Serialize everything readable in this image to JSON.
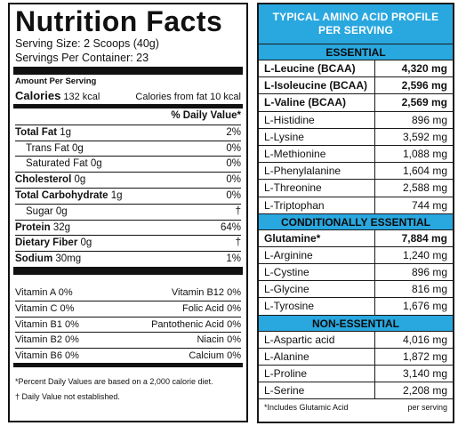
{
  "nutrition": {
    "title": "Nutrition Facts",
    "serving_size": "Serving Size: 2 Scoops (40g)",
    "servings_per_container": "Servings Per Container: 23",
    "amount_per_serving": "Amount Per Serving",
    "calories": {
      "label": "Calories",
      "value": "132 kcal",
      "from_fat": "Calories from fat 10 kcal"
    },
    "daily_value_header": "% Daily Value*",
    "nutrients": [
      {
        "label": "Total Fat",
        "amount": "1g",
        "dv": "2%",
        "bold": true,
        "indent": false
      },
      {
        "label": "Trans Fat",
        "amount": "0g",
        "dv": "0%",
        "bold": false,
        "indent": true
      },
      {
        "label": "Saturated Fat",
        "amount": "0g",
        "dv": "0%",
        "bold": false,
        "indent": true
      },
      {
        "label": "Cholesterol",
        "amount": "0g",
        "dv": "0%",
        "bold": true,
        "indent": false
      },
      {
        "label": "Total Carbohydrate",
        "amount": "1g",
        "dv": "0%",
        "bold": true,
        "indent": false
      },
      {
        "label": "Sugar",
        "amount": "0g",
        "dv": "†",
        "bold": false,
        "indent": true
      },
      {
        "label": "Protein",
        "amount": "32g",
        "dv": "64%",
        "bold": true,
        "indent": false
      },
      {
        "label": "Dietary Fiber",
        "amount": "0g",
        "dv": "†",
        "bold": true,
        "indent": false
      },
      {
        "label": "Sodium",
        "amount": "30mg",
        "dv": "1%",
        "bold": true,
        "indent": false
      }
    ],
    "vitamins": [
      {
        "left": "Vitamin A 0%",
        "right": "Vitamin B12 0%"
      },
      {
        "left": "Vitamin C 0%",
        "right": "Folic Acid 0%"
      },
      {
        "left": "Vitamin B1 0%",
        "right": "Pantothenic Acid 0%"
      },
      {
        "left": "Vitamin B2 0%",
        "right": "Niacin 0%"
      },
      {
        "left": "Vitamin B6 0%",
        "right": "Calcium 0%"
      }
    ],
    "footnote_1": "*Percent Daily Values are based on a 2,000 calorie diet.",
    "footnote_2": "† Daily Value not established."
  },
  "amino": {
    "title_line1": "TYPICAL AMINO ACID PROFILE",
    "title_line2": "PER SERVING",
    "header_color": "#29a7df",
    "sections": [
      {
        "title": "ESSENTIAL",
        "rows": [
          {
            "name": "L-Leucine (BCAA)",
            "amount": "4,320 mg",
            "bold": true
          },
          {
            "name": "L-Isoleucine (BCAA)",
            "amount": "2,596 mg",
            "bold": true
          },
          {
            "name": "L-Valine (BCAA)",
            "amount": "2,569 mg",
            "bold": true
          },
          {
            "name": "L-Histidine",
            "amount": "896 mg",
            "bold": false
          },
          {
            "name": "L-Lysine",
            "amount": "3,592 mg",
            "bold": false
          },
          {
            "name": "L-Methionine",
            "amount": "1,088 mg",
            "bold": false
          },
          {
            "name": "L-Phenylalanine",
            "amount": "1,604 mg",
            "bold": false
          },
          {
            "name": "L-Threonine",
            "amount": "2,588 mg",
            "bold": false
          },
          {
            "name": "L-Triptophan",
            "amount": "744 mg",
            "bold": false
          }
        ]
      },
      {
        "title": "CONDITIONALLY ESSENTIAL",
        "rows": [
          {
            "name": "Glutamine*",
            "amount": "7,884 mg",
            "bold": true
          },
          {
            "name": "L-Arginine",
            "amount": "1,240 mg",
            "bold": false
          },
          {
            "name": "L-Cystine",
            "amount": "896 mg",
            "bold": false
          },
          {
            "name": "L-Glycine",
            "amount": "816 mg",
            "bold": false
          },
          {
            "name": "L-Tyrosine",
            "amount": "1,676 mg",
            "bold": false
          }
        ]
      },
      {
        "title": "NON-ESSENTIAL",
        "rows": [
          {
            "name": "L-Aspartic acid",
            "amount": "4,016 mg",
            "bold": false
          },
          {
            "name": "L-Alanine",
            "amount": "1,872 mg",
            "bold": false
          },
          {
            "name": "L-Proline",
            "amount": "3,140 mg",
            "bold": false
          },
          {
            "name": "L-Serine",
            "amount": "2,208 mg",
            "bold": false
          }
        ]
      }
    ],
    "footnote_left": "*Includes Glutamic Acid",
    "footnote_right": "per serving"
  }
}
